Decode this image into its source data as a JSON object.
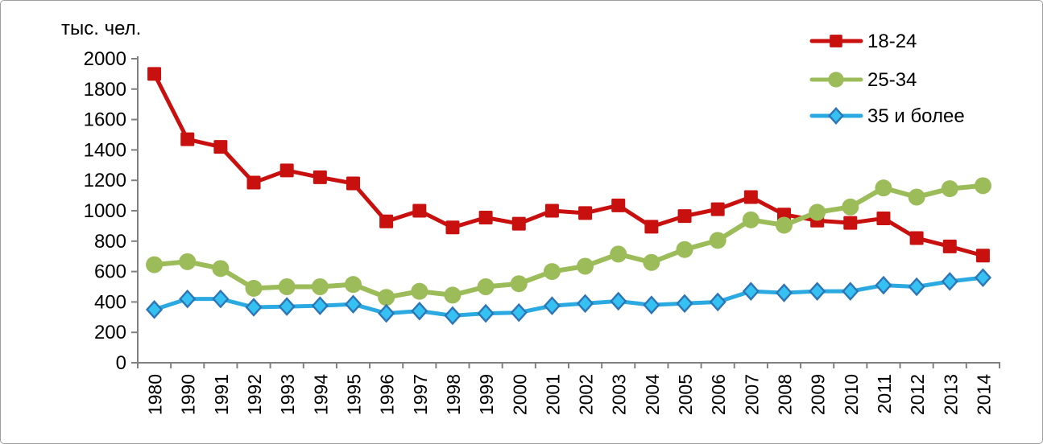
{
  "page": {
    "background": "#FFFFFF",
    "border_color": "#9E9E9E"
  },
  "chart_data": {
    "type": "line",
    "title": "",
    "unit_label": "тыс. чел.",
    "categories": [
      "1980",
      "1990",
      "1991",
      "1992",
      "1993",
      "1994",
      "1995",
      "1996",
      "1997",
      "1998",
      "1999",
      "2000",
      "2001",
      "2002",
      "2003",
      "2004",
      "2005",
      "2006",
      "2007",
      "2008",
      "2009",
      "2010",
      "2011",
      "2012",
      "2013",
      "2014"
    ],
    "series": [
      {
        "name": "18-24",
        "marker": "square",
        "color": "#C8100E",
        "marker_fill": "#C8100E",
        "marker_border": "#C8100E",
        "values": [
          1900,
          1470,
          1420,
          1185,
          1265,
          1220,
          1180,
          930,
          1000,
          890,
          955,
          915,
          1000,
          985,
          1035,
          895,
          965,
          1010,
          1090,
          975,
          935,
          920,
          950,
          820,
          765,
          705
        ]
      },
      {
        "name": "25-34",
        "marker": "circle",
        "color": "#9CBB59",
        "marker_fill": "#9CBB59",
        "marker_border": "#9CBB59",
        "values": [
          645,
          665,
          620,
          490,
          500,
          500,
          515,
          430,
          470,
          445,
          500,
          520,
          600,
          635,
          715,
          660,
          745,
          805,
          940,
          905,
          990,
          1025,
          1150,
          1090,
          1145,
          1165
        ]
      },
      {
        "name": "35 и более",
        "marker": "diamond",
        "color": "#2BAAE2",
        "marker_fill": "#35C1F1",
        "marker_border": "#2E75B6",
        "values": [
          350,
          420,
          420,
          365,
          370,
          375,
          385,
          325,
          340,
          310,
          325,
          330,
          375,
          390,
          405,
          380,
          390,
          400,
          470,
          460,
          470,
          470,
          510,
          500,
          535,
          560
        ]
      }
    ],
    "ylim": [
      0,
      2000
    ],
    "ytick_step": 200,
    "ytick_labels": [
      "0",
      "200",
      "400",
      "600",
      "800",
      "1000",
      "1200",
      "1400",
      "1600",
      "1800",
      "2000"
    ],
    "grid": false,
    "legend_position": "top-right",
    "axis_color": "#808080",
    "text_color": "#000000"
  }
}
